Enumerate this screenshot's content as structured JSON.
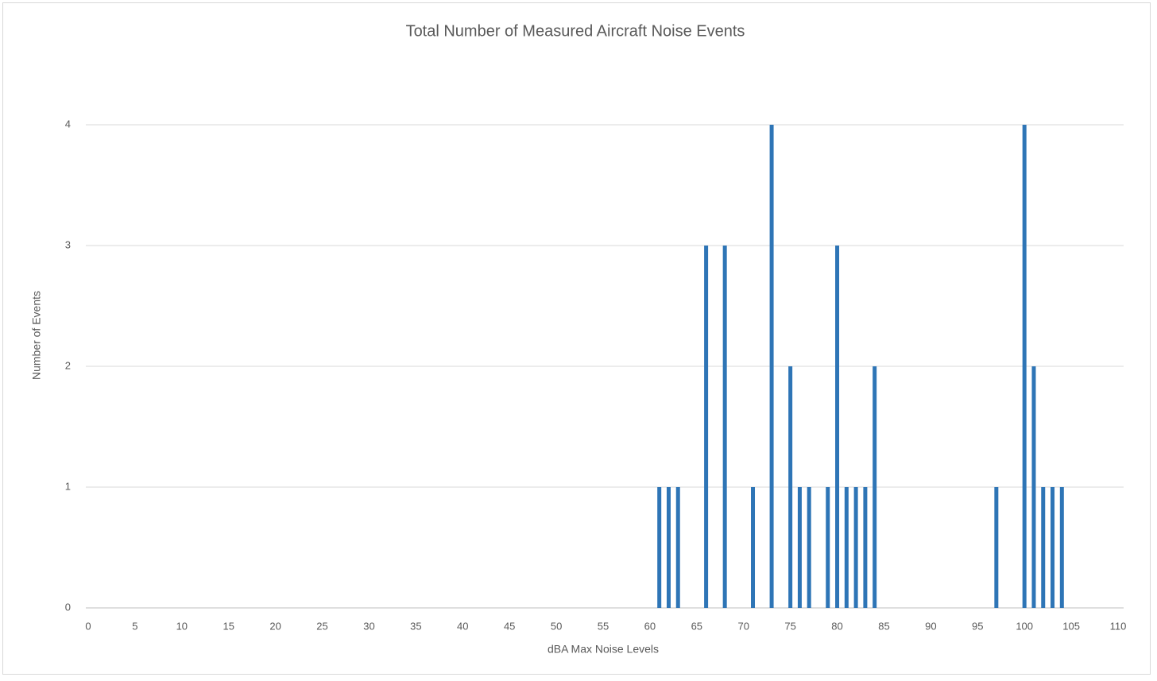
{
  "chart_data": {
    "type": "bar",
    "title": "Total Number of Measured Aircraft Noise Events",
    "x_label": "dBA Max Noise Levels",
    "y_label": "Number of Events",
    "x": [
      61,
      62,
      63,
      66,
      68,
      71,
      73,
      75,
      76,
      77,
      79,
      80,
      81,
      82,
      83,
      84,
      97,
      100,
      101,
      102,
      103,
      104
    ],
    "values": [
      1,
      1,
      1,
      3,
      3,
      1,
      4,
      2,
      1,
      1,
      1,
      3,
      1,
      1,
      1,
      2,
      1,
      4,
      2,
      1,
      1,
      1
    ],
    "color": "#2e75b6",
    "xlim": [
      0,
      110
    ],
    "xticks": [
      0,
      5,
      10,
      15,
      20,
      25,
      30,
      35,
      40,
      45,
      50,
      55,
      60,
      65,
      70,
      75,
      80,
      85,
      90,
      95,
      100,
      105,
      110
    ],
    "ylim": [
      0,
      4
    ],
    "yticks": [
      0,
      1,
      2,
      3,
      4
    ],
    "grid": true
  }
}
